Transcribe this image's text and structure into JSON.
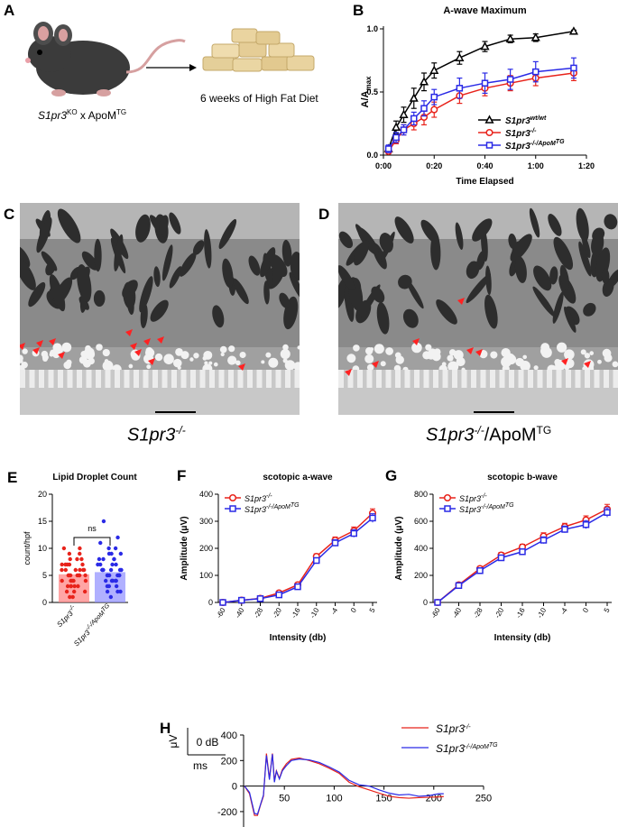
{
  "panels": {
    "A": "A",
    "B": "B",
    "C": "C",
    "D": "D",
    "E": "E",
    "F": "F",
    "G": "G",
    "H": "H"
  },
  "panel_a": {
    "mouse_label_pre": "S1pr3",
    "mouse_label_sup1": "KO",
    "mouse_label_mid": " x ApoM",
    "mouse_label_sup2": "TG",
    "diet_label": "6 weeks of High Fat Diet"
  },
  "panel_c": {
    "caption_main": "S1pr3",
    "caption_sup": "-/-"
  },
  "panel_d": {
    "caption_main": "S1pr3",
    "caption_sup": "-/-",
    "caption_tail": "/ApoM",
    "caption_tail_sup": "TG"
  },
  "colors": {
    "wt": "#000000",
    "ko": "#e8231b",
    "tg": "#2a2ae6",
    "ko_light": "#ff7f7f",
    "tg_light": "#8f8fff"
  },
  "chart_data": [
    {
      "id": "B",
      "type": "line",
      "title": "A-wave Maximum",
      "xlabel": "Time Elapsed",
      "ylabel_main": "A/A",
      "ylabel_sub": "max",
      "xlim": [
        0,
        80
      ],
      "ylim": [
        0,
        1.0
      ],
      "x_ticks": [
        0,
        20,
        40,
        60,
        80
      ],
      "x_tick_labels": [
        "0:00",
        "0:20",
        "0:40",
        "1:00",
        "1:20"
      ],
      "y_ticks": [
        0,
        0.5,
        1.0
      ],
      "y_tick_labels": [
        "0.0",
        "0.5",
        "1.0"
      ],
      "legend_position": "bottom-right",
      "x": [
        2,
        5,
        8,
        12,
        16,
        20,
        30,
        40,
        50,
        60,
        75
      ],
      "series": [
        {
          "name": "S1pr3",
          "name_sup": "wt/wt",
          "color": "#000000",
          "marker": "triangle",
          "values": [
            0.05,
            0.22,
            0.32,
            0.45,
            0.58,
            0.67,
            0.77,
            0.86,
            0.92,
            0.93,
            0.98
          ],
          "errors": [
            0.02,
            0.05,
            0.06,
            0.08,
            0.07,
            0.06,
            0.05,
            0.04,
            0.03,
            0.03,
            0.01
          ]
        },
        {
          "name": "S1pr3",
          "name_sup": "-/-",
          "color": "#e8231b",
          "marker": "circle",
          "values": [
            0.03,
            0.12,
            0.2,
            0.25,
            0.3,
            0.36,
            0.47,
            0.53,
            0.57,
            0.61,
            0.65
          ],
          "errors": [
            0.02,
            0.03,
            0.04,
            0.05,
            0.06,
            0.06,
            0.06,
            0.06,
            0.06,
            0.06,
            0.06
          ]
        },
        {
          "name": "S1pr3",
          "name_sup": "-/-/ApoM",
          "name_sup2": "TG",
          "color": "#2a2ae6",
          "marker": "square",
          "values": [
            0.05,
            0.14,
            0.2,
            0.29,
            0.37,
            0.46,
            0.53,
            0.57,
            0.6,
            0.66,
            0.69
          ],
          "errors": [
            0.03,
            0.04,
            0.04,
            0.05,
            0.06,
            0.06,
            0.08,
            0.08,
            0.08,
            0.08,
            0.08
          ]
        }
      ]
    },
    {
      "id": "E",
      "type": "bar",
      "title": "Lipid Droplet Count",
      "ylabel": "count/hpf",
      "ylim": [
        0,
        20
      ],
      "y_ticks": [
        0,
        5,
        10,
        15,
        20
      ],
      "categories": [
        "S1pr3",
        "S1pr3"
      ],
      "category_sups": [
        "-/-",
        "-/-/ApoM"
      ],
      "category_sups2": [
        "",
        "TG"
      ],
      "values": [
        5.2,
        5.6
      ],
      "annotation": "ns",
      "points": [
        [
          1,
          2,
          2,
          3,
          3,
          3,
          4,
          4,
          4,
          4,
          5,
          5,
          5,
          5,
          5,
          6,
          6,
          6,
          6,
          7,
          7,
          7,
          7,
          8,
          8,
          8,
          9,
          9,
          10,
          10,
          2,
          3,
          5,
          6,
          4,
          3,
          5,
          7,
          1,
          6
        ],
        [
          1,
          2,
          2,
          3,
          3,
          4,
          4,
          4,
          5,
          5,
          5,
          5,
          6,
          6,
          6,
          6,
          7,
          7,
          7,
          8,
          8,
          8,
          9,
          9,
          10,
          10,
          11,
          12,
          15,
          3,
          4,
          5,
          6,
          7,
          2,
          6,
          5,
          8,
          4,
          9
        ]
      ]
    },
    {
      "id": "F",
      "type": "line",
      "title": "scotopic a-wave",
      "xlabel": "Intensity (db)",
      "ylabel": "Amplitude (μV)",
      "categories": [
        "-60",
        "-40",
        "-28",
        "-20",
        "-16",
        "-10",
        "-4",
        "0",
        "5"
      ],
      "ylim": [
        0,
        400
      ],
      "y_ticks": [
        0,
        100,
        200,
        300,
        400
      ],
      "legend_position": "top-left",
      "series": [
        {
          "name": "S1pr3",
          "name_sup": "-/-",
          "color": "#e8231b",
          "marker": "circle",
          "values": [
            0,
            8,
            15,
            35,
            65,
            170,
            230,
            265,
            330
          ],
          "errors": [
            2,
            3,
            4,
            6,
            8,
            10,
            12,
            14,
            16
          ]
        },
        {
          "name": "S1pr3",
          "name_sup": "-/-/ApoM",
          "name_sup2": "TG",
          "color": "#2a2ae6",
          "marker": "square",
          "values": [
            0,
            8,
            14,
            28,
            58,
            155,
            220,
            255,
            312
          ],
          "errors": [
            2,
            3,
            4,
            6,
            8,
            10,
            12,
            14,
            16
          ]
        }
      ]
    },
    {
      "id": "G",
      "type": "line",
      "title": "scotopic b-wave",
      "xlabel": "Intensity (db)",
      "ylabel": "Amplitude (μV)",
      "categories": [
        "-60",
        "-40",
        "-28",
        "-20",
        "-16",
        "-10",
        "-4",
        "0",
        "5"
      ],
      "ylim": [
        0,
        800
      ],
      "y_ticks": [
        0,
        200,
        400,
        600,
        800
      ],
      "legend_position": "top-left",
      "series": [
        {
          "name": "S1pr3",
          "name_sup": "-/-",
          "color": "#e8231b",
          "marker": "circle",
          "values": [
            0,
            130,
            250,
            350,
            410,
            490,
            560,
            610,
            690
          ],
          "errors": [
            5,
            10,
            15,
            20,
            20,
            25,
            25,
            30,
            35
          ]
        },
        {
          "name": "S1pr3",
          "name_sup": "-/-/ApoM",
          "name_sup2": "TG",
          "color": "#2a2ae6",
          "marker": "square",
          "values": [
            0,
            125,
            235,
            330,
            375,
            460,
            540,
            575,
            665
          ],
          "errors": [
            5,
            10,
            15,
            20,
            20,
            25,
            25,
            30,
            35
          ]
        }
      ]
    },
    {
      "id": "H",
      "type": "line",
      "xlim": [
        0,
        250
      ],
      "ylim": [
        -250,
        400
      ],
      "x_ticks": [
        50,
        100,
        150,
        200,
        250
      ],
      "y_ticks": [
        -200,
        0,
        200,
        400
      ],
      "scale_bar_v": "μV",
      "scale_bar_db": "0 dB",
      "scale_bar_ms": "ms",
      "legend_position": "top-right",
      "x": [
        0,
        5,
        10,
        13,
        16,
        19,
        22,
        25,
        28,
        30,
        32,
        35,
        38,
        42,
        47,
        55,
        65,
        75,
        85,
        95,
        105,
        115,
        125,
        135,
        145,
        155,
        165,
        175,
        185,
        195,
        200
      ],
      "series": [
        {
          "name": "S1pr3",
          "name_sup": "-/-",
          "color": "#e8231b",
          "values": [
            0,
            -60,
            -230,
            -230,
            -150,
            -80,
            255,
            60,
            255,
            40,
            120,
            60,
            130,
            175,
            210,
            220,
            200,
            175,
            140,
            100,
            30,
            -5,
            -30,
            -55,
            -80,
            -90,
            -95,
            -90,
            -88,
            -85,
            -82
          ]
        },
        {
          "name": "S1pr3",
          "name_sup": "-/-/ApoM",
          "name_sup2": "TG",
          "color": "#2a2ae6",
          "values": [
            0,
            -50,
            -215,
            -220,
            -145,
            -70,
            240,
            50,
            250,
            30,
            115,
            55,
            120,
            160,
            200,
            212,
            205,
            185,
            150,
            110,
            45,
            10,
            0,
            -30,
            -55,
            -70,
            -65,
            -80,
            -75,
            -60,
            -60
          ]
        }
      ]
    }
  ]
}
